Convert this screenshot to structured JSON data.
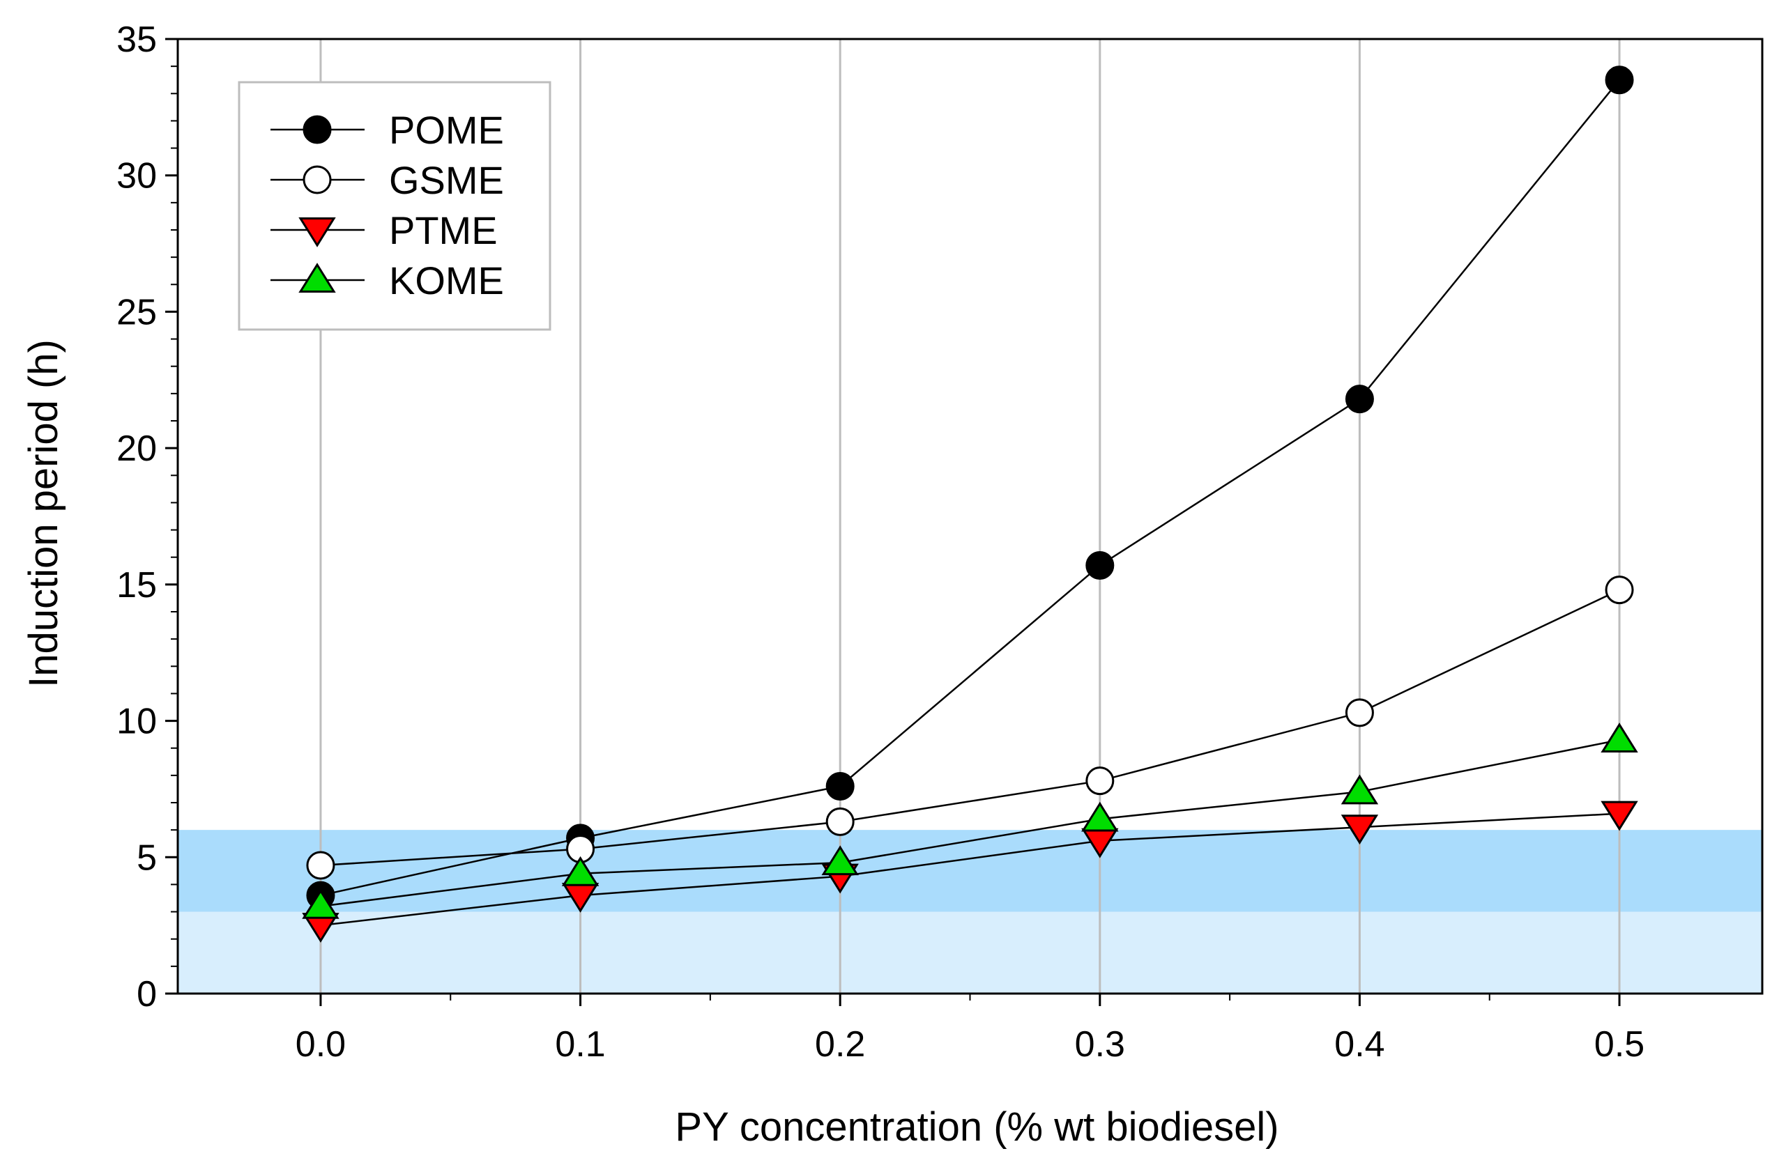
{
  "chart_data": {
    "type": "line",
    "xlabel": "PY concentration (% wt biodiesel)",
    "ylabel": "Induction period (h)",
    "x": [
      0.0,
      0.1,
      0.2,
      0.3,
      0.4,
      0.5
    ],
    "x_ticks": [
      "0.0",
      "0.1",
      "0.2",
      "0.3",
      "0.4",
      "0.5"
    ],
    "y_ticks": [
      "0",
      "5",
      "10",
      "15",
      "20",
      "25",
      "30",
      "35"
    ],
    "xlim": [
      -0.055,
      0.555
    ],
    "ylim": [
      0,
      35
    ],
    "grid": "vertical",
    "legend_position": "top-left",
    "bands": [
      {
        "from": 0,
        "to": 3,
        "color": "#d8eefd"
      },
      {
        "from": 3,
        "to": 6,
        "color": "#aadcfc"
      }
    ],
    "series": [
      {
        "name": "POME",
        "marker": "circle",
        "fill": "#000000",
        "values": [
          3.6,
          5.7,
          7.6,
          15.7,
          21.8,
          33.5
        ]
      },
      {
        "name": "GSME",
        "marker": "circle",
        "fill": "#ffffff",
        "values": [
          4.7,
          5.3,
          6.3,
          7.8,
          10.3,
          14.8
        ]
      },
      {
        "name": "PTME",
        "marker": "triangle-down",
        "fill": "#ff0000",
        "values": [
          2.5,
          3.6,
          4.3,
          5.6,
          6.1,
          6.6
        ]
      },
      {
        "name": "KOME",
        "marker": "triangle-up",
        "fill": "#00dd00",
        "values": [
          3.2,
          4.4,
          4.8,
          6.4,
          7.4,
          9.3
        ]
      }
    ]
  }
}
